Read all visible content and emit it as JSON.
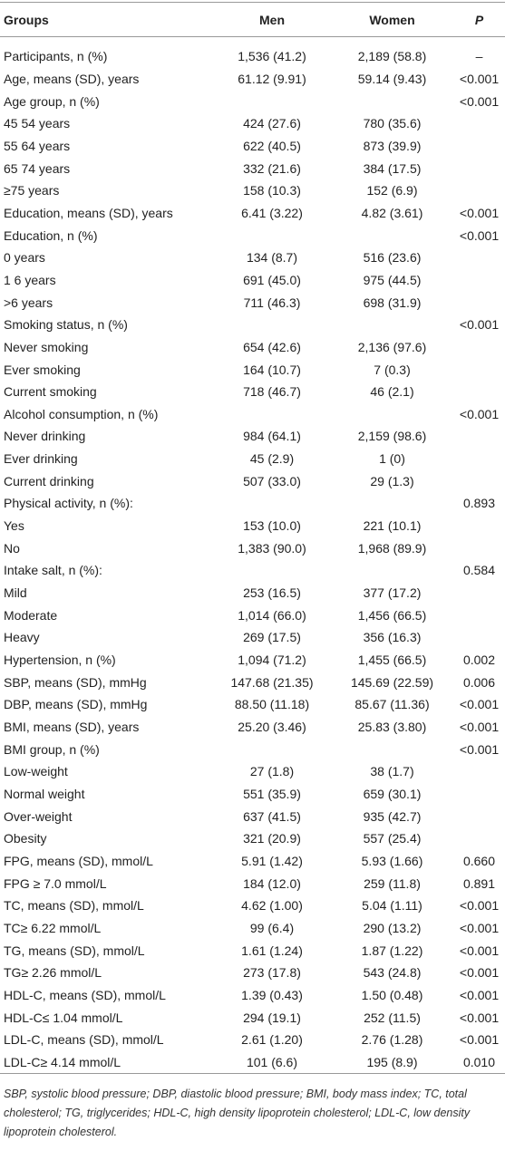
{
  "table": {
    "header": [
      "Groups",
      "Men",
      "Women",
      "P"
    ],
    "rows": [
      [
        "Participants, n (%)",
        "1,536 (41.2)",
        "2,189 (58.8)",
        "–"
      ],
      [
        "Age, means (SD), years",
        "61.12 (9.91)",
        "59.14 (9.43)",
        "<0.001"
      ],
      [
        "Age group, n (%)",
        null,
        null,
        "<0.001"
      ],
      [
        "45 54 years",
        "424 (27.6)",
        "780 (35.6)",
        null
      ],
      [
        "55 64 years",
        "622 (40.5)",
        "873 (39.9)",
        null
      ],
      [
        "65 74 years",
        "332 (21.6)",
        "384 (17.5)",
        null
      ],
      [
        "≥75 years",
        "158 (10.3)",
        "152 (6.9)",
        null
      ],
      [
        "Education, means (SD), years",
        "6.41 (3.22)",
        "4.82 (3.61)",
        "<0.001"
      ],
      [
        "Education, n (%)",
        null,
        null,
        "<0.001"
      ],
      [
        "0 years",
        "134 (8.7)",
        "516 (23.6)",
        null
      ],
      [
        "1 6 years",
        "691 (45.0)",
        "975 (44.5)",
        null
      ],
      [
        ">6 years",
        "711 (46.3)",
        "698 (31.9)",
        null
      ],
      [
        "Smoking status, n (%)",
        null,
        null,
        "<0.001"
      ],
      [
        "Never smoking",
        "654 (42.6)",
        "2,136 (97.6)",
        null
      ],
      [
        "Ever smoking",
        "164 (10.7)",
        "7 (0.3)",
        null
      ],
      [
        "Current smoking",
        "718 (46.7)",
        "46 (2.1)",
        null
      ],
      [
        "Alcohol consumption, n (%)",
        null,
        null,
        "<0.001"
      ],
      [
        "Never drinking",
        "984 (64.1)",
        "2,159 (98.6)",
        null
      ],
      [
        "Ever drinking",
        "45 (2.9)",
        "1 (0)",
        null
      ],
      [
        "Current drinking",
        "507 (33.0)",
        "29 (1.3)",
        null
      ],
      [
        "Physical activity, n (%):",
        null,
        null,
        "0.893"
      ],
      [
        "Yes",
        "153 (10.0)",
        "221 (10.1)",
        null
      ],
      [
        "No",
        "1,383 (90.0)",
        "1,968 (89.9)",
        null
      ],
      [
        "Intake salt, n (%):",
        null,
        null,
        "0.584"
      ],
      [
        "Mild",
        "253 (16.5)",
        "377 (17.2)",
        null
      ],
      [
        "Moderate",
        "1,014 (66.0)",
        "1,456 (66.5)",
        null
      ],
      [
        "Heavy",
        "269 (17.5)",
        "356 (16.3)",
        null
      ],
      [
        "Hypertension, n (%)",
        "1,094 (71.2)",
        "1,455 (66.5)",
        "0.002"
      ],
      [
        "SBP, means (SD), mmHg",
        "147.68 (21.35)",
        "145.69 (22.59)",
        "0.006"
      ],
      [
        "DBP, means (SD), mmHg",
        "88.50 (11.18)",
        "85.67 (11.36)",
        "<0.001"
      ],
      [
        "BMI, means (SD), years",
        "25.20 (3.46)",
        "25.83 (3.80)",
        "<0.001"
      ],
      [
        "BMI group, n (%)",
        null,
        null,
        "<0.001"
      ],
      [
        "Low-weight",
        "27 (1.8)",
        "38 (1.7)",
        null
      ],
      [
        "Normal weight",
        "551 (35.9)",
        "659 (30.1)",
        null
      ],
      [
        "Over-weight",
        "637 (41.5)",
        "935 (42.7)",
        null
      ],
      [
        "Obesity",
        "321 (20.9)",
        "557 (25.4)",
        null
      ],
      [
        "FPG, means (SD), mmol/L",
        "5.91 (1.42)",
        "5.93 (1.66)",
        "0.660"
      ],
      [
        "FPG ≥ 7.0 mmol/L",
        "184 (12.0)",
        "259 (11.8)",
        "0.891"
      ],
      [
        "TC, means (SD), mmol/L",
        "4.62 (1.00)",
        "5.04 (1.11)",
        "<0.001"
      ],
      [
        "TC≥ 6.22 mmol/L",
        "99 (6.4)",
        "290 (13.2)",
        "<0.001"
      ],
      [
        "TG, means (SD), mmol/L",
        "1.61 (1.24)",
        "1.87 (1.22)",
        "<0.001"
      ],
      [
        "TG≥ 2.26 mmol/L",
        "273 (17.8)",
        "543 (24.8)",
        "<0.001"
      ],
      [
        "HDL-C, means (SD), mmol/L",
        "1.39 (0.43)",
        "1.50 (0.48)",
        "<0.001"
      ],
      [
        "HDL-C≤ 1.04 mmol/L",
        "294 (19.1)",
        "252 (11.5)",
        "<0.001"
      ],
      [
        "LDL-C, means (SD), mmol/L",
        "2.61 (1.20)",
        "2.76 (1.28)",
        "<0.001"
      ],
      [
        "LDL-C≥ 4.14 mmol/L",
        "101 (6.6)",
        "195 (8.9)",
        "0.010"
      ]
    ],
    "footnote": "SBP, systolic blood pressure; DBP, diastolic blood pressure; BMI, body mass index; TC, total cholesterol; TG, triglycerides; HDL-C, high density lipoprotein cholesterol; LDL-C, low density lipoprotein cholesterol."
  }
}
